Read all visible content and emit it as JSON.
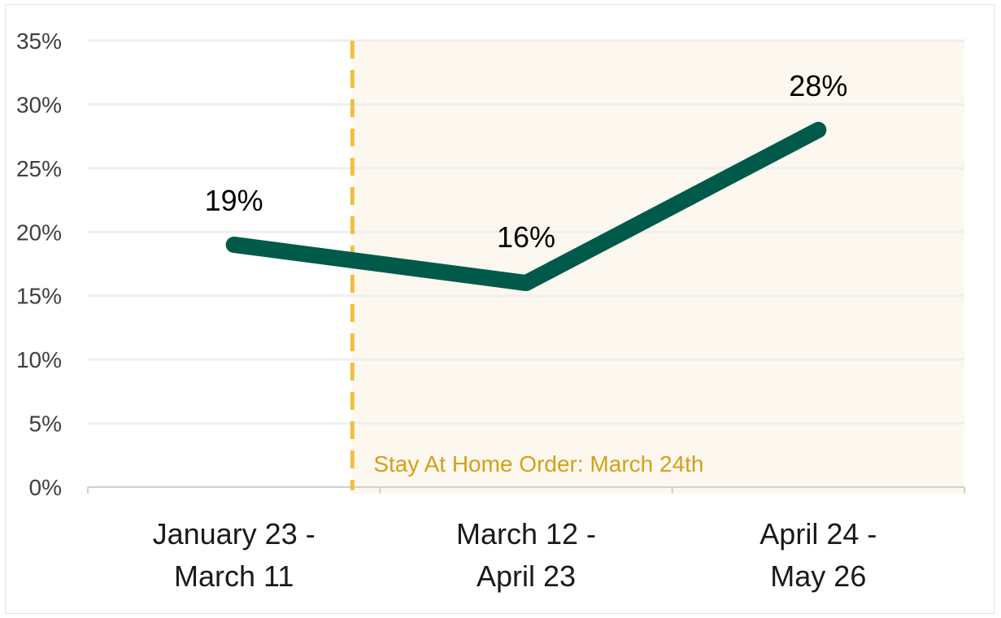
{
  "chart_data": {
    "type": "line",
    "categories": [
      [
        "January 23 -",
        "March 11"
      ],
      [
        "March 12 -",
        "April 23"
      ],
      [
        "April 24 -",
        "May 26"
      ]
    ],
    "series": [
      {
        "values": [
          19,
          16,
          28
        ],
        "labels": [
          "19%",
          "16%",
          "28%"
        ]
      }
    ],
    "ylim": [
      0,
      35
    ],
    "yticks": [
      0,
      5,
      10,
      15,
      20,
      25,
      30,
      35
    ],
    "ytick_labels": [
      "0%",
      "5%",
      "10%",
      "15%",
      "20%",
      "25%",
      "30%",
      "35%"
    ],
    "grid": true,
    "legend": "none",
    "annotation": {
      "label": "Stay At Home Order: March 24th",
      "position_category": 1,
      "shaded_after": true
    },
    "colors": {
      "line": "#005a4a",
      "annotation_line": "#f0bf3e",
      "annotation_text": "#d4a017",
      "shade": "#fdf8ef",
      "grid": "#efefef",
      "axis": "#d0d0d0"
    }
  }
}
